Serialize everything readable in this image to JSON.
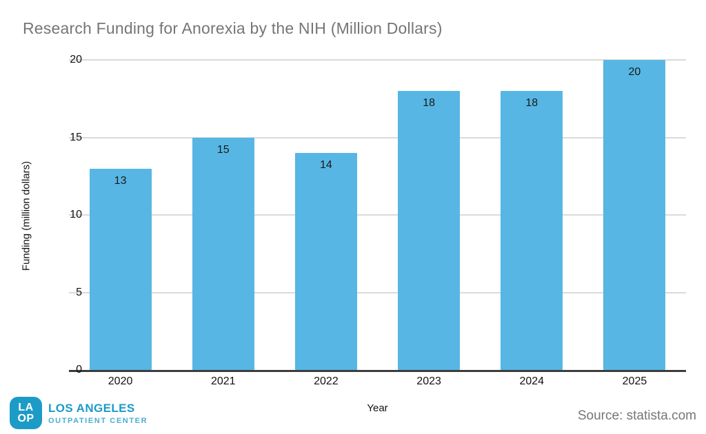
{
  "chart_data": {
    "type": "bar",
    "title": "Research Funding for Anorexia by the NIH (Million Dollars)",
    "categories": [
      "2020",
      "2021",
      "2022",
      "2023",
      "2024",
      "2025"
    ],
    "values": [
      13,
      15,
      14,
      18,
      18,
      20
    ],
    "xlabel": "Year",
    "ylabel": "Funding (million dollars)",
    "ylim": [
      0,
      20
    ],
    "yticks": [
      0,
      5,
      10,
      15,
      20
    ],
    "grid": true,
    "legend": false,
    "value_labels": true,
    "bar_color": "#57b6e3",
    "gridline_color": "#dadada",
    "baseline_color": "#3c3c3c",
    "title_color": "#757575"
  },
  "footer": {
    "source_label": "Source: statista.com",
    "logo": {
      "mark_line1": "LA",
      "mark_line2": "OP",
      "mark_color": "#1d9bc7",
      "name": "LOS ANGELES",
      "subname": "OUTPATIENT CENTER"
    }
  }
}
